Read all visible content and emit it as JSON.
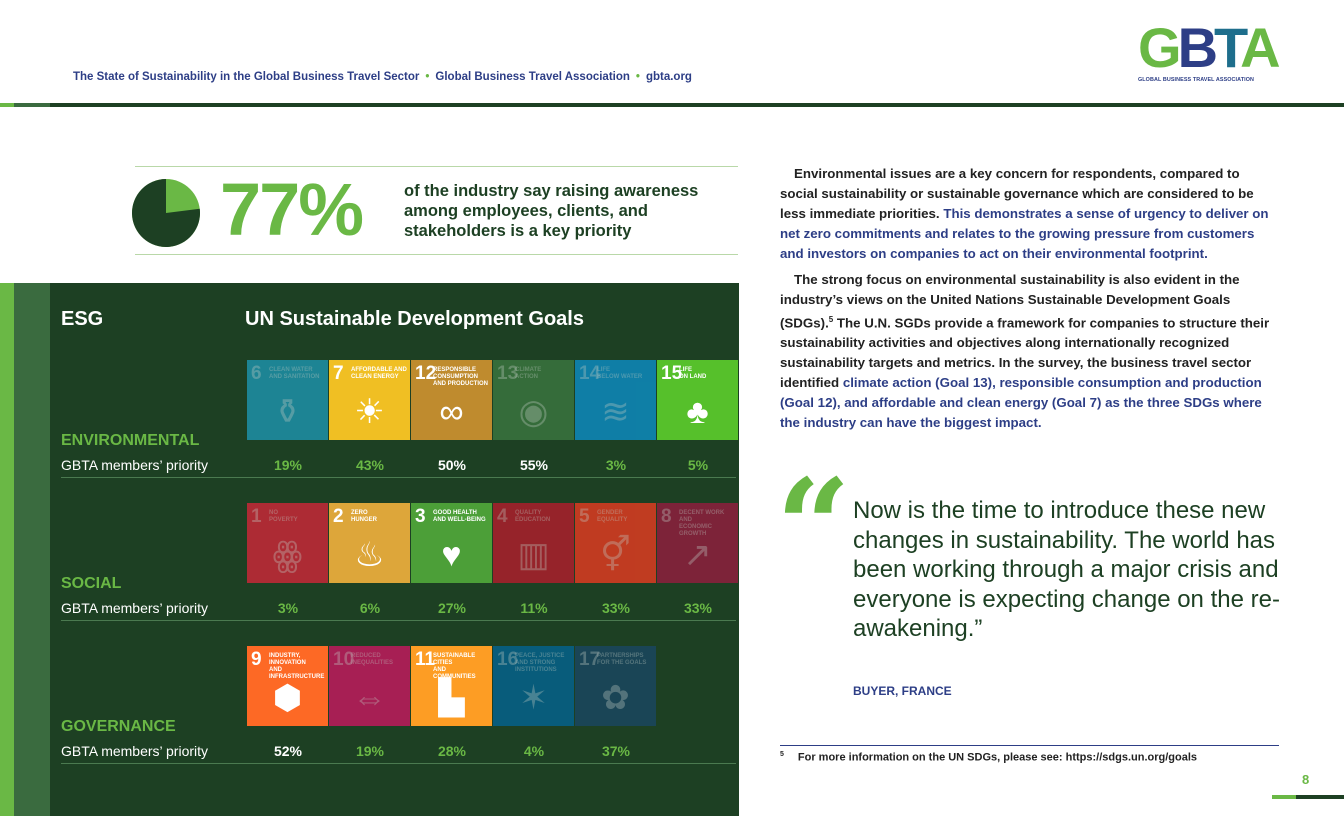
{
  "header": {
    "title": "The State of Sustainability in the Global Business Travel Sector",
    "org": "Global Business Travel Association",
    "url": "gbta.org",
    "separator": "•"
  },
  "logo": {
    "letters": [
      "G",
      "B",
      "T",
      "A"
    ],
    "tagline": "GLOBAL BUSINESS TRAVEL ASSOCIATION"
  },
  "stat": {
    "percent_value": 77,
    "percent": "77%",
    "text": "of the industry say raising awareness among employees, clients, and stakeholders is a key priority"
  },
  "panel": {
    "esg_title": "ESG",
    "un_title": "UN Sustainable Development Goals",
    "rows": [
      {
        "category": "ENVIRONMENTAL",
        "priority_label": "GBTA members’ priority",
        "goals": [
          {
            "num": "6",
            "label": "CLEAN WATER\nAND SANITATION",
            "icon": "water-tap-icon",
            "glyph": "⚱",
            "color": "#1e9fc0",
            "value": "19%",
            "dim": true,
            "highlight": false
          },
          {
            "num": "7",
            "label": "AFFORDABLE AND\nCLEAN ENERGY",
            "icon": "sun-power-icon",
            "glyph": "☀",
            "color": "#f0bf23",
            "value": "43%",
            "dim": false,
            "highlight": false
          },
          {
            "num": "12",
            "label": "RESPONSIBLE\nCONSUMPTION\nAND PRODUCTION",
            "icon": "infinity-icon",
            "glyph": "∞",
            "color": "#bf8b2e",
            "value": "50%",
            "dim": false,
            "highlight": true
          },
          {
            "num": "13",
            "label": "CLIMATE\nACTION",
            "icon": "globe-eye-icon",
            "glyph": "◉",
            "color": "#3f7e44",
            "value": "55%",
            "dim": true,
            "highlight": true
          },
          {
            "num": "14",
            "label": "LIFE\nBELOW WATER",
            "icon": "fish-icon",
            "glyph": "≋",
            "color": "#0a97d9",
            "value": "3%",
            "dim": true,
            "highlight": false
          },
          {
            "num": "15",
            "label": "LIFE\nON LAND",
            "icon": "tree-icon",
            "glyph": "♣",
            "color": "#56c02b",
            "value": "5%",
            "dim": false,
            "highlight": false
          }
        ]
      },
      {
        "category": "SOCIAL",
        "priority_label": "GBTA members’ priority",
        "goals": [
          {
            "num": "1",
            "label": "NO\nPOVERTY",
            "icon": "family-icon",
            "glyph": "ꙮ",
            "color": "#e5243b",
            "value": "3%",
            "dim": true,
            "highlight": false
          },
          {
            "num": "2",
            "label": "ZERO\nHUNGER",
            "icon": "bowl-icon",
            "glyph": "♨",
            "color": "#dda63a",
            "value": "6%",
            "dim": false,
            "highlight": false
          },
          {
            "num": "3",
            "label": "GOOD HEALTH\nAND WELL-BEING",
            "icon": "heartbeat-icon",
            "glyph": "♥",
            "color": "#4c9f38",
            "value": "27%",
            "dim": false,
            "highlight": false
          },
          {
            "num": "4",
            "label": "QUALITY\nEDUCATION",
            "icon": "book-icon",
            "glyph": "▥",
            "color": "#c5192d",
            "value": "11%",
            "dim": true,
            "highlight": false
          },
          {
            "num": "5",
            "label": "GENDER\nEQUALITY",
            "icon": "gender-icon",
            "glyph": "⚥",
            "color": "#ff3a21",
            "value": "33%",
            "dim": true,
            "highlight": false
          },
          {
            "num": "8",
            "label": "DECENT WORK AND\nECONOMIC GROWTH",
            "icon": "growth-chart-icon",
            "glyph": "↗",
            "color": "#a21942",
            "value": "33%",
            "dim": true,
            "highlight": false
          }
        ]
      },
      {
        "category": "GOVERNANCE",
        "priority_label": "GBTA members’ priority",
        "goals": [
          {
            "num": "9",
            "label": "INDUSTRY, INNOVATION\nAND INFRASTRUCTURE",
            "icon": "cubes-icon",
            "glyph": "⬢",
            "color": "#fd6925",
            "value": "52%",
            "dim": false,
            "highlight": true
          },
          {
            "num": "10",
            "label": "REDUCED\nINEQUALITIES",
            "icon": "equality-arrows-icon",
            "glyph": "⇔",
            "color": "#dd1367",
            "value": "19%",
            "dim": true,
            "highlight": false
          },
          {
            "num": "11",
            "label": "SUSTAINABLE CITIES\nAND COMMUNITIES",
            "icon": "city-icon",
            "glyph": "▙",
            "color": "#fd9d24",
            "value": "28%",
            "dim": false,
            "highlight": false
          },
          {
            "num": "16",
            "label": "PEACE, JUSTICE\nAND STRONG\nINSTITUTIONS",
            "icon": "dove-icon",
            "glyph": "✶",
            "color": "#00689d",
            "value": "4%",
            "dim": true,
            "highlight": false
          },
          {
            "num": "17",
            "label": "PARTNERSHIPS\nFOR THE GOALS",
            "icon": "rings-icon",
            "glyph": "✿",
            "color": "#19486a",
            "value": "37%",
            "dim": true,
            "highlight": false
          }
        ]
      }
    ]
  },
  "body": {
    "p1_a": "Environmental issues are a key concern for respondents, compared to social sustainability or sustainable governance which are considered to be less immediate priorities.",
    "p1_b": "This demonstrates a sense of urgency to deliver on net zero commitments and relates to the growing pressure from customers and investors on companies to act on their environmental footprint.",
    "p2_a": "The strong focus on environmental sustainability is also evident in the industry’s views on the United Nations Sustainable Development Goals (SDGs).",
    "p2_sup": "5",
    "p2_b": " The U.N. SGDs provide a framework for companies to structure their sustainability activities and objectives along internationally recognized sustainability targets and metrics. In the survey, the business travel sector identified",
    "p2_c1": "climate action (Goal 13), responsible consumption and production (Goal 12), and affordable and clean energy (Goal 7)",
    "p2_mid": " as",
    "p2_c2": "the three SDGs where the industry can have the biggest impact."
  },
  "quote": {
    "mark": "“",
    "text": "Now is the time to introduce these new changes in sustainability. The world has been working through a major crisis and everyone is expecting change on the re-awakening.”",
    "source": "BUYER, FRANCE"
  },
  "footnote": {
    "num": "5",
    "text": "For more information on the UN SDGs, please see: https://sdgs.un.org/goals"
  },
  "page_number": "8",
  "colors": {
    "brand_green": "#6ab845",
    "dark_green": "#1d4023",
    "navy": "#2d3e86",
    "logo_g": "#6ab845",
    "logo_b": "#2d3e86",
    "logo_t": "#1e6e8c",
    "logo_a": "#6ab845"
  }
}
